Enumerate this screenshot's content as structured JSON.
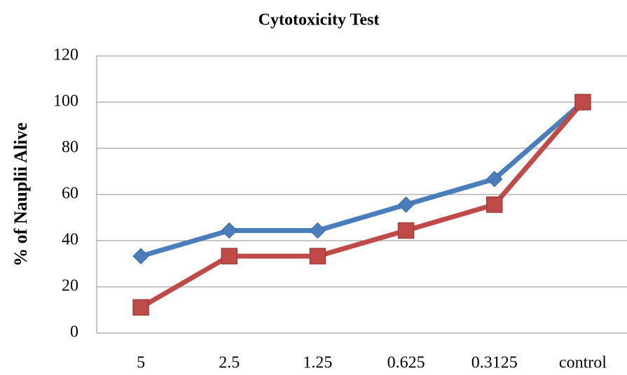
{
  "chart_data": {
    "type": "line",
    "title": "Cytotoxicity Test",
    "y_label": "% of Nauplii Alive",
    "categories": [
      "5",
      "2.5",
      "1.25",
      "0.625",
      "0.3125",
      "control"
    ],
    "series": [
      {
        "color": "#4a7ebb",
        "marker": "diamond",
        "values": [
          33.3,
          44.4,
          44.4,
          55.6,
          66.7,
          100
        ]
      },
      {
        "color": "#be4b48",
        "marker": "square",
        "values": [
          11.1,
          33.3,
          33.3,
          44.4,
          55.6,
          100
        ]
      }
    ],
    "ylim": [
      0,
      120
    ],
    "yticks": [
      0,
      20,
      40,
      60,
      80,
      100,
      120
    ],
    "grid": true
  }
}
